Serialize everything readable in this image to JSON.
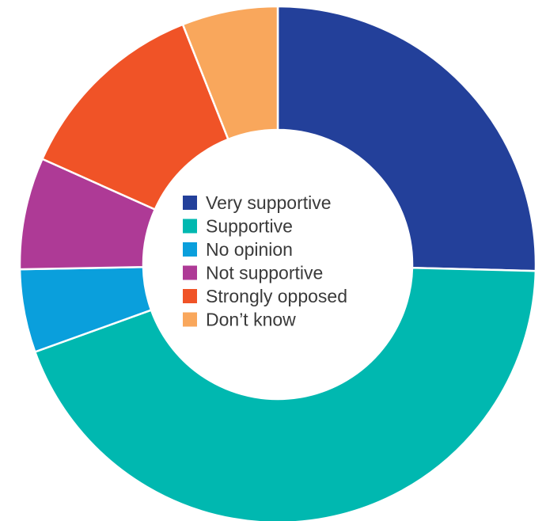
{
  "chart_data": {
    "type": "pie",
    "variant": "donut",
    "title": "",
    "categories": [
      "Very supportive",
      "Supportive",
      "No opinion",
      "Not supportive",
      "Strongly opposed",
      "Don’t know"
    ],
    "values": [
      25.4,
      44.1,
      5.2,
      7.0,
      12.3,
      6.0
    ],
    "unit": "",
    "colors": [
      "#23409a",
      "#00b8b0",
      "#0a9fdc",
      "#ae3a96",
      "#f05327",
      "#f9a75c"
    ],
    "start": "12 o'clock",
    "direction": "clockwise",
    "legend": {
      "position": "center",
      "entries": [
        "Very supportive",
        "Supportive",
        "No opinion",
        "Not supportive",
        "Strongly opposed",
        "Don’t know"
      ]
    }
  }
}
